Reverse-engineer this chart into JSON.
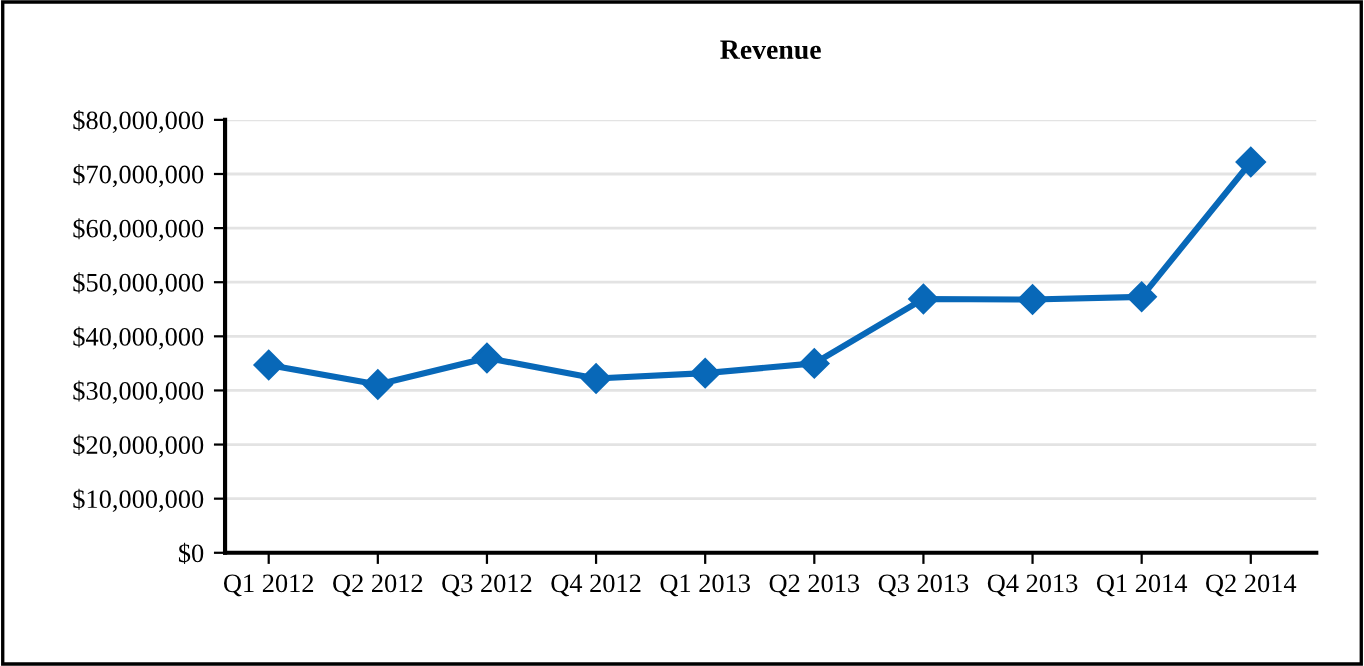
{
  "chart_data": {
    "type": "line",
    "title": "Revenue",
    "categories": [
      "Q1 2012",
      "Q2 2012",
      "Q3 2012",
      "Q4 2012",
      "Q1 2013",
      "Q2 2013",
      "Q3 2013",
      "Q4 2013",
      "Q1 2014",
      "Q2 2014"
    ],
    "series": [
      {
        "color": "#0868b8",
        "values": [
          34700000,
          31100000,
          36000000,
          32200000,
          33200000,
          35000000,
          46900000,
          46800000,
          47300000,
          72200000
        ]
      }
    ],
    "ylim": [
      0,
      80000000
    ],
    "yticks": [
      {
        "value": 0,
        "label": "$0"
      },
      {
        "value": 10000000,
        "label": "$10,000,000"
      },
      {
        "value": 20000000,
        "label": "$20,000,000"
      },
      {
        "value": 30000000,
        "label": "$30,000,000"
      },
      {
        "value": 40000000,
        "label": "$40,000,000"
      },
      {
        "value": 50000000,
        "label": "$50,000,000"
      },
      {
        "value": 60000000,
        "label": "$60,000,000"
      },
      {
        "value": 70000000,
        "label": "$70,000,000"
      },
      {
        "value": 80000000,
        "label": "$80,000,000"
      }
    ],
    "grid": "y",
    "marker": "diamond",
    "line_style": "solid",
    "legend": false
  }
}
